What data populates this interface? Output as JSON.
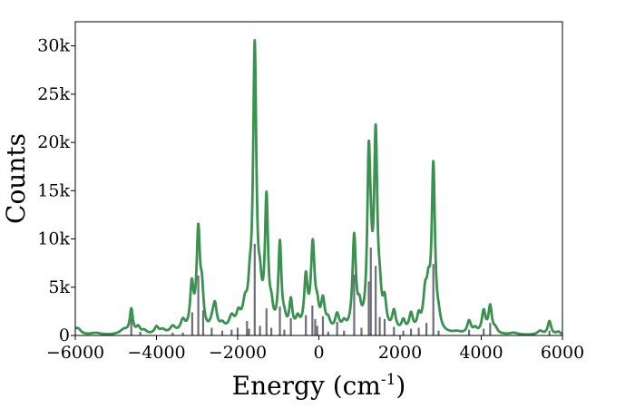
{
  "chart_data": {
    "type": "line",
    "title": "",
    "xlabel": "Energy (cm",
    "xlabel_sup": "-1",
    "xlabel_close": ")",
    "ylabel": "Counts",
    "xlim": [
      -6000,
      6000
    ],
    "ylim": [
      0,
      32500
    ],
    "x_ticks": [
      -6000,
      -4000,
      -2000,
      0,
      2000,
      4000,
      6000
    ],
    "y_ticks": [
      0,
      5000,
      10000,
      15000,
      20000,
      25000,
      30000
    ],
    "x_tick_labels": [
      "−6000",
      "−4000",
      "−2000",
      "0",
      "2000",
      "4000",
      "6000"
    ],
    "y_tick_labels": [
      "0",
      "5k",
      "10k",
      "15k",
      "20k",
      "25k",
      "30k"
    ],
    "grid": false,
    "colors": {
      "curve": "#3a9150",
      "sticks": "#6e6e78",
      "frame": "#000000"
    },
    "series": [
      {
        "role": "spectrum-curve",
        "peaks": [
          {
            "x": -6000,
            "h": 500,
            "w": 90
          },
          {
            "x": -5920,
            "h": 400,
            "w": 80
          },
          {
            "x": -5500,
            "h": 200,
            "w": 150
          },
          {
            "x": -4800,
            "h": 500,
            "w": 120
          },
          {
            "x": -4620,
            "h": 2500,
            "w": 45
          },
          {
            "x": -4450,
            "h": 700,
            "w": 60
          },
          {
            "x": -4300,
            "h": 350,
            "w": 70
          },
          {
            "x": -4000,
            "h": 700,
            "w": 60
          },
          {
            "x": -3850,
            "h": 400,
            "w": 80
          },
          {
            "x": -3600,
            "h": 700,
            "w": 80
          },
          {
            "x": -3350,
            "h": 1200,
            "w": 70
          },
          {
            "x": -3130,
            "h": 4600,
            "w": 50
          },
          {
            "x": -2970,
            "h": 10200,
            "w": 50
          },
          {
            "x": -2880,
            "h": 3500,
            "w": 45
          },
          {
            "x": -2620,
            "h": 900,
            "w": 70
          },
          {
            "x": -2560,
            "h": 2400,
            "w": 55
          },
          {
            "x": -2380,
            "h": 700,
            "w": 80
          },
          {
            "x": -2150,
            "h": 1400,
            "w": 80
          },
          {
            "x": -1980,
            "h": 1500,
            "w": 70
          },
          {
            "x": -1820,
            "h": 2200,
            "w": 70
          },
          {
            "x": -1700,
            "h": 3000,
            "w": 50
          },
          {
            "x": -1580,
            "h": 29000,
            "w": 48
          },
          {
            "x": -1450,
            "h": 3000,
            "w": 50
          },
          {
            "x": -1290,
            "h": 13200,
            "w": 46
          },
          {
            "x": -1170,
            "h": 1700,
            "w": 50
          },
          {
            "x": -960,
            "h": 8900,
            "w": 45
          },
          {
            "x": -850,
            "h": 900,
            "w": 50
          },
          {
            "x": -690,
            "h": 3000,
            "w": 45
          },
          {
            "x": -520,
            "h": 1200,
            "w": 60
          },
          {
            "x": -320,
            "h": 5300,
            "w": 50
          },
          {
            "x": -150,
            "h": 8800,
            "w": 55
          },
          {
            "x": -40,
            "h": 1800,
            "w": 50
          },
          {
            "x": 100,
            "h": 3000,
            "w": 55
          },
          {
            "x": 230,
            "h": 1000,
            "w": 60
          },
          {
            "x": 450,
            "h": 1700,
            "w": 60
          },
          {
            "x": 620,
            "h": 800,
            "w": 60
          },
          {
            "x": 870,
            "h": 9700,
            "w": 50
          },
          {
            "x": 1000,
            "h": 1800,
            "w": 50
          },
          {
            "x": 1230,
            "h": 16800,
            "w": 45
          },
          {
            "x": 1280,
            "h": 3500,
            "w": 40
          },
          {
            "x": 1400,
            "h": 19600,
            "w": 48
          },
          {
            "x": 1500,
            "h": 2500,
            "w": 45
          },
          {
            "x": 1620,
            "h": 2700,
            "w": 50
          },
          {
            "x": 1850,
            "h": 2000,
            "w": 55
          },
          {
            "x": 2080,
            "h": 1100,
            "w": 55
          },
          {
            "x": 2270,
            "h": 1800,
            "w": 55
          },
          {
            "x": 2460,
            "h": 1400,
            "w": 50
          },
          {
            "x": 2620,
            "h": 3500,
            "w": 60
          },
          {
            "x": 2700,
            "h": 3200,
            "w": 50
          },
          {
            "x": 2820,
            "h": 17000,
            "w": 48
          },
          {
            "x": 2950,
            "h": 1000,
            "w": 55
          },
          {
            "x": 3400,
            "h": 200,
            "w": 120
          },
          {
            "x": 3700,
            "h": 1300,
            "w": 55
          },
          {
            "x": 3850,
            "h": 500,
            "w": 60
          },
          {
            "x": 4060,
            "h": 2300,
            "w": 55
          },
          {
            "x": 4220,
            "h": 2800,
            "w": 50
          },
          {
            "x": 4350,
            "h": 500,
            "w": 60
          },
          {
            "x": 4800,
            "h": 200,
            "w": 120
          },
          {
            "x": 5450,
            "h": 400,
            "w": 80
          },
          {
            "x": 5680,
            "h": 1400,
            "w": 50
          },
          {
            "x": 5900,
            "h": 300,
            "w": 70
          }
        ]
      },
      {
        "role": "stick-lines",
        "points": [
          [
            -4620,
            1800
          ],
          [
            -4400,
            400
          ],
          [
            -3600,
            300
          ],
          [
            -3350,
            300
          ],
          [
            -3120,
            2400
          ],
          [
            -2970,
            6200
          ],
          [
            -2850,
            2600
          ],
          [
            -2640,
            800
          ],
          [
            -2380,
            500
          ],
          [
            -2150,
            600
          ],
          [
            -2000,
            800
          ],
          [
            -1770,
            1500
          ],
          [
            -1720,
            700
          ],
          [
            -1580,
            9500
          ],
          [
            -1450,
            1000
          ],
          [
            -1290,
            2800
          ],
          [
            -1170,
            800
          ],
          [
            -960,
            3000
          ],
          [
            -850,
            600
          ],
          [
            -690,
            1800
          ],
          [
            -320,
            2100
          ],
          [
            -160,
            3100
          ],
          [
            -90,
            1700
          ],
          [
            -40,
            1000
          ],
          [
            100,
            2000
          ],
          [
            230,
            400
          ],
          [
            450,
            1400
          ],
          [
            620,
            500
          ],
          [
            870,
            6300
          ],
          [
            1050,
            800
          ],
          [
            1230,
            5600
          ],
          [
            1280,
            9100
          ],
          [
            1400,
            7200
          ],
          [
            1500,
            1900
          ],
          [
            1620,
            1700
          ],
          [
            1850,
            900
          ],
          [
            2080,
            500
          ],
          [
            2270,
            700
          ],
          [
            2460,
            800
          ],
          [
            2650,
            1300
          ],
          [
            2820,
            7400
          ],
          [
            2950,
            500
          ],
          [
            3700,
            600
          ],
          [
            4060,
            700
          ],
          [
            4220,
            1300
          ],
          [
            5680,
            500
          ]
        ]
      }
    ]
  }
}
